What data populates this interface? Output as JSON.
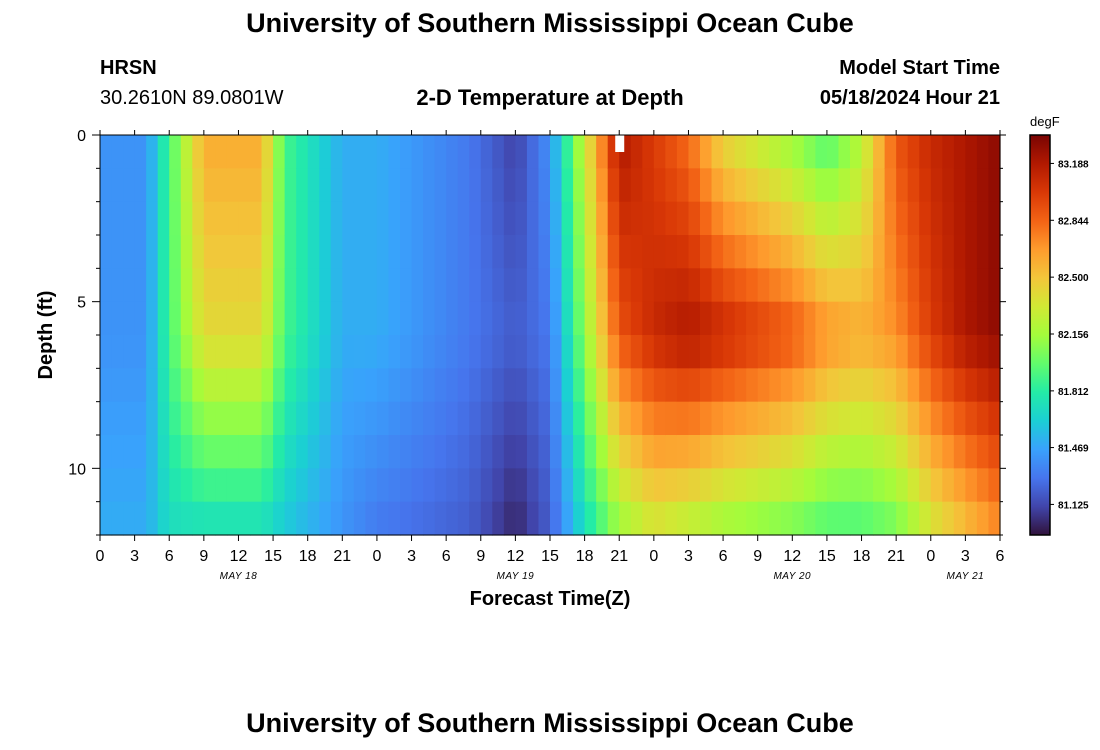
{
  "page": {
    "title": "University of Southern Mississippi Ocean Cube",
    "footer_title": "University of Southern Mississippi Ocean Cube",
    "station": "HRSN",
    "coords": "30.2610N  89.0801W",
    "plot_title": "2-D Temperature at Depth",
    "start_label": "Model Start Time",
    "start_value": "05/18/2024 Hour 21"
  },
  "chart_data": {
    "type": "heatmap",
    "title": "2-D Temperature at Depth",
    "xlabel": "Forecast Time(Z)",
    "ylabel": "Depth (ft)",
    "x_tick_labels": [
      "0",
      "3",
      "6",
      "9",
      "12",
      "15",
      "18",
      "21",
      "0",
      "3",
      "6",
      "9",
      "12",
      "15",
      "18",
      "21",
      "0",
      "3",
      "6",
      "9",
      "12",
      "15",
      "18",
      "21",
      "0",
      "3",
      "6"
    ],
    "x_hours_from": "2024-05-18 00Z",
    "x_range": [
      0,
      78
    ],
    "date_labels": [
      {
        "label": "MAY 18",
        "hour": 12
      },
      {
        "label": "MAY 19",
        "hour": 36
      },
      {
        "label": "MAY 20",
        "hour": 60
      },
      {
        "label": "MAY 21",
        "hour": 75
      }
    ],
    "y_ticks": [
      0,
      5,
      10
    ],
    "y_range": [
      0,
      12
    ],
    "y_inverted": true,
    "model_start_marker_hour": 45,
    "colorbar": {
      "units": "degF",
      "labels": [
        "83.188",
        "82.844",
        "82.500",
        "82.156",
        "81.812",
        "81.469",
        "81.125"
      ],
      "range": [
        80.94,
        83.36
      ],
      "colors": [
        "#30123b",
        "#4145ab",
        "#4675ed",
        "#39a2fc",
        "#1bcfd4",
        "#24eca6",
        "#61fc6c",
        "#a4fc3b",
        "#d1e834",
        "#f3c63a",
        "#fe9b2d",
        "#f36315",
        "#d93806",
        "#b11901",
        "#7a0403"
      ]
    },
    "temperature_keypoints_degF": {
      "hours": [
        0,
        4,
        6,
        9,
        14,
        16,
        21,
        24,
        32,
        36,
        39,
        42,
        45,
        48,
        51,
        54,
        60,
        63,
        66,
        69,
        72,
        75,
        78
      ],
      "surface": [
        81.4,
        81.4,
        81.9,
        82.6,
        82.6,
        81.9,
        81.5,
        81.5,
        81.3,
        81.1,
        81.4,
        82.3,
        83.2,
        83.0,
        82.8,
        82.4,
        82.1,
        81.9,
        82.2,
        82.9,
        83.1,
        83.2,
        83.3
      ],
      "mid_6ft": [
        81.4,
        81.4,
        81.9,
        82.4,
        82.4,
        81.9,
        81.5,
        81.5,
        81.3,
        81.2,
        81.3,
        82.1,
        82.9,
        83.1,
        83.2,
        83.1,
        82.9,
        82.7,
        82.6,
        82.7,
        83.0,
        83.2,
        83.3
      ],
      "bottom": [
        81.5,
        81.5,
        81.7,
        81.7,
        81.7,
        81.6,
        81.4,
        81.3,
        81.2,
        81.0,
        81.2,
        81.7,
        82.1,
        82.3,
        82.2,
        82.1,
        82.0,
        81.9,
        81.9,
        82.0,
        82.3,
        82.5,
        82.7
      ]
    }
  }
}
